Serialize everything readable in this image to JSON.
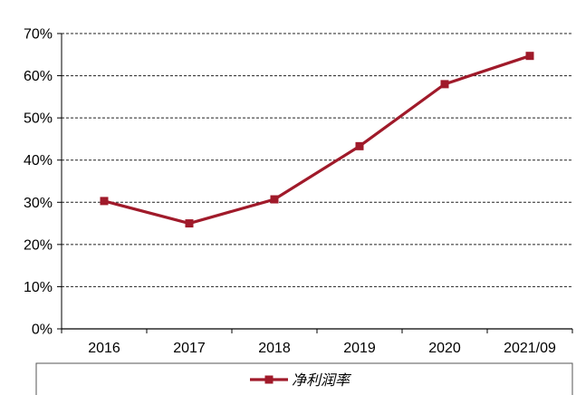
{
  "chart_data": {
    "type": "line",
    "title": "",
    "xlabel": "",
    "ylabel": "",
    "categories": [
      "2016",
      "2017",
      "2018",
      "2019",
      "2020",
      "2021/09"
    ],
    "ylim": [
      0,
      70
    ],
    "yticks": [
      "0%",
      "10%",
      "20%",
      "30%",
      "40%",
      "50%",
      "60%",
      "70%"
    ],
    "grid": true,
    "legend_position": "bottom",
    "series": [
      {
        "name": "净利润率",
        "values": [
          30.3,
          25.0,
          30.7,
          43.3,
          58.0,
          64.7
        ],
        "color": "#a01a2a",
        "marker": "square"
      }
    ]
  }
}
